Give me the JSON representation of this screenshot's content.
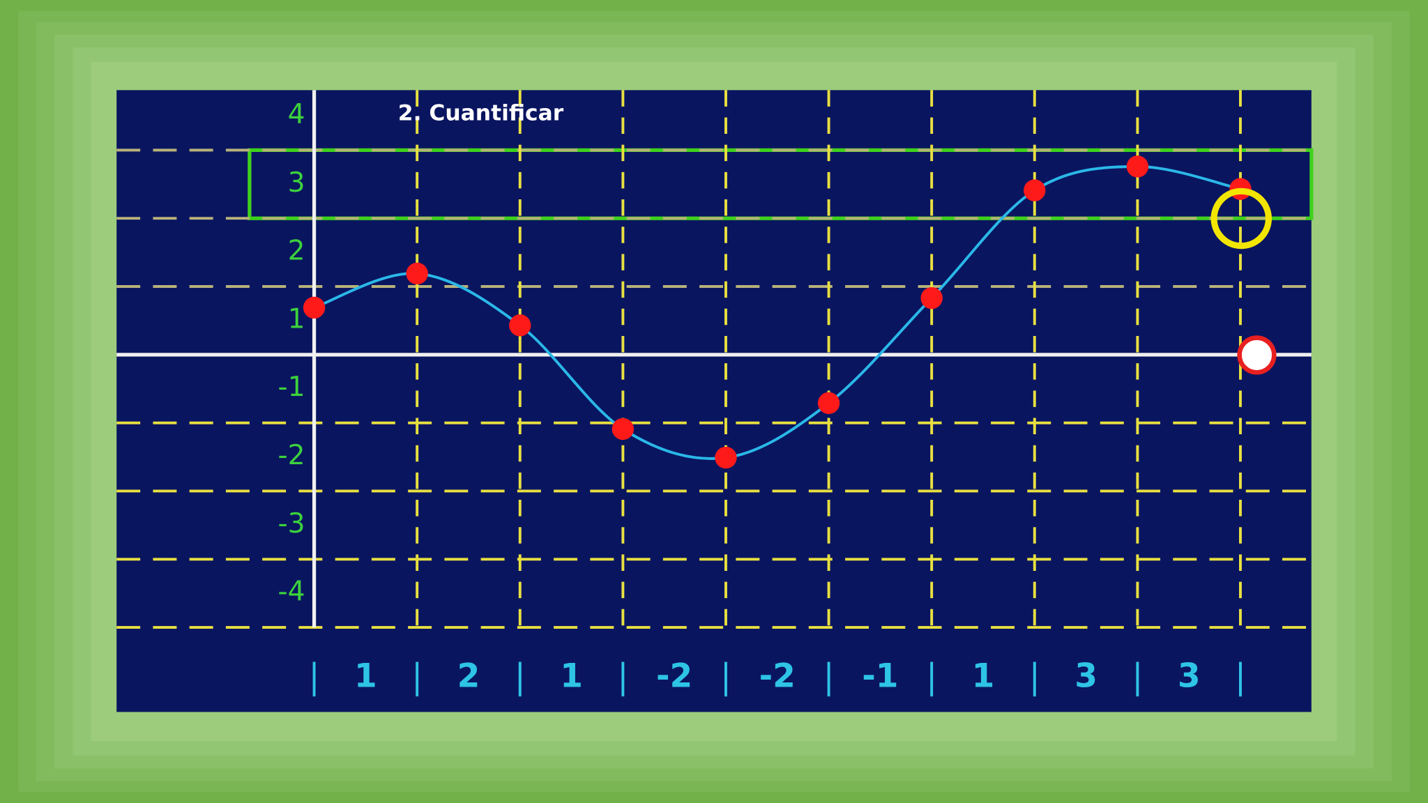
{
  "chart_data": {
    "type": "line",
    "title": "2. Cuantificar",
    "x": [
      0,
      1,
      2,
      3,
      4,
      5,
      6,
      7,
      8,
      9
    ],
    "series": [
      {
        "color": "#ff1a1a",
        "line_color": "#2ab8e8",
        "values": [
          0.69,
          1.19,
          0.43,
          -1.09,
          -1.51,
          -0.71,
          0.83,
          2.41,
          2.76,
          2.43
        ]
      }
    ],
    "levels": [
      1,
      2,
      1,
      -2,
      -2,
      -1,
      1,
      3,
      3
    ],
    "xlim": [
      -1.92,
      9.69
    ],
    "ylim": [
      -5.24,
      3.88
    ],
    "yticks": [
      {
        "value": 3.5,
        "label": "4"
      },
      {
        "value": 2.5,
        "label": "3"
      },
      {
        "value": 1.5,
        "label": "2"
      },
      {
        "value": 0.5,
        "label": "1"
      },
      {
        "value": -0.5,
        "label": "-1"
      },
      {
        "value": -1.5,
        "label": "-2"
      },
      {
        "value": -2.5,
        "label": "-3"
      },
      {
        "value": -3.5,
        "label": "-4"
      }
    ],
    "ygrid": [
      3,
      2,
      1,
      -1,
      -2,
      -3,
      -4
    ],
    "xgrid": [
      1,
      2,
      3,
      4,
      5,
      6,
      7,
      8,
      9
    ],
    "highlight_ylim": [
      2,
      3
    ]
  }
}
